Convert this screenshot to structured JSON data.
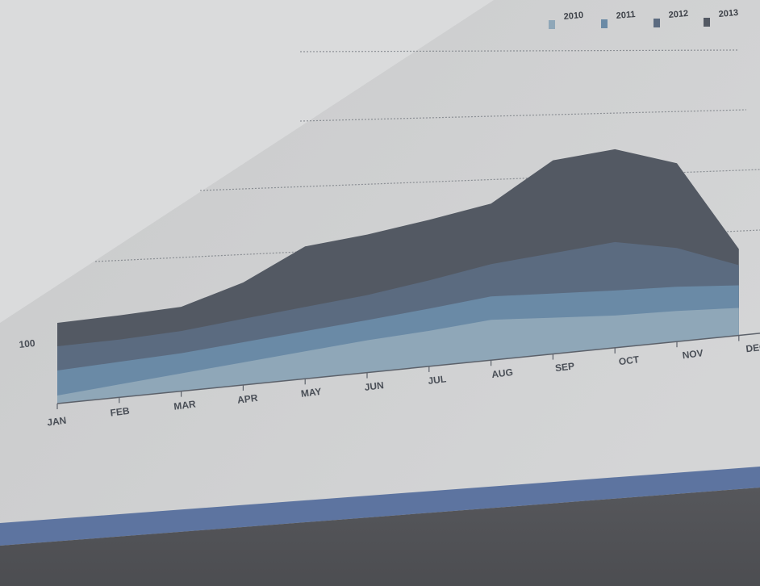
{
  "chart_data": {
    "type": "area",
    "stacked": true,
    "categories": [
      "JAN",
      "FEB",
      "MAR",
      "APR",
      "MAY",
      "JUN",
      "JUL",
      "AUG",
      "SEP",
      "OCT",
      "NOV",
      "DEC"
    ],
    "y_tick_labels": [
      "100"
    ],
    "legend_position": "top-right",
    "grid": true,
    "series": [
      {
        "name": "2010",
        "color": "#8fa7b8",
        "values": [
          20,
          32,
          44,
          56,
          68,
          80,
          88,
          100,
          90,
          80,
          76,
          68
        ]
      },
      {
        "name": "2011",
        "color": "#6a8aa6",
        "values": [
          62,
          56,
          50,
          50,
          50,
          50,
          55,
          58,
          60,
          62,
          60,
          56
        ]
      },
      {
        "name": "2012",
        "color": "#5b6b80",
        "values": [
          60,
          55,
          55,
          58,
          60,
          62,
          70,
          80,
          100,
          120,
          96,
          50
        ]
      },
      {
        "name": "2013",
        "color": "#535963",
        "values": [
          58,
          60,
          60,
          90,
          150,
          150,
          150,
          150,
          230,
          230,
          210,
          40
        ]
      }
    ]
  },
  "colors": {
    "backdrop": "#dadbdc",
    "panel": "#cfd0d1",
    "gridline": "#6f747b",
    "axis": "#5c616a",
    "stripe": "#5d74a0",
    "base": "#545559"
  }
}
